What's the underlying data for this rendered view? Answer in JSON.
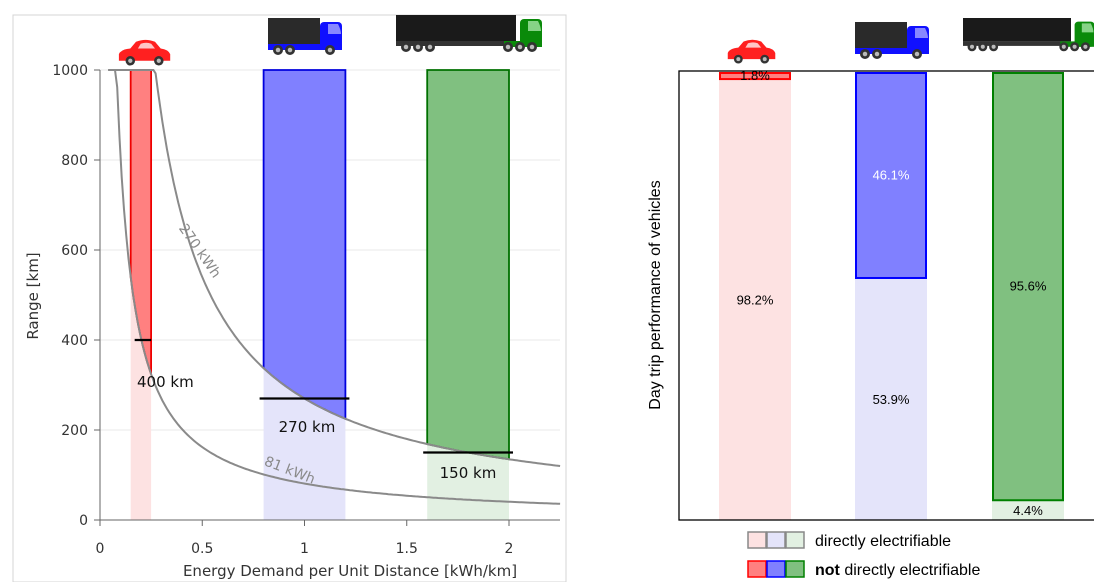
{
  "chart_data": [
    {
      "type": "area",
      "xlabel": "Energy Demand per Unit Distance [kWh/km]",
      "ylabel": "Range [km]",
      "xlim": [
        0,
        2.25
      ],
      "ylim": [
        0,
        1000
      ],
      "xticks": [
        "0",
        "0.5",
        "1",
        "1.5",
        "2"
      ],
      "xtick_values": [
        0,
        0.5,
        1,
        1.5,
        2
      ],
      "yticks": [
        "0",
        "200",
        "400",
        "600",
        "800",
        "1000"
      ],
      "ytick_values": [
        0,
        200,
        400,
        600,
        800,
        1000
      ],
      "grid": true,
      "curves": [
        {
          "label": "81 kWh",
          "capacity_kwh": 81
        },
        {
          "label": "270 kWh",
          "capacity_kwh": 270
        }
      ],
      "bands": [
        {
          "vehicle": "car",
          "x_range": [
            0.15,
            0.25
          ],
          "capacity_kwh": 81,
          "color": "#ff0000"
        },
        {
          "vehicle": "truck",
          "x_range": [
            0.8,
            1.2
          ],
          "capacity_kwh": 270,
          "color": "#0000ff"
        },
        {
          "vehicle": "semi-truck",
          "x_range": [
            1.6,
            2.0
          ],
          "capacity_kwh": 270,
          "color": "#008000"
        }
      ],
      "thresholds": [
        {
          "vehicle": "car",
          "range_km": 400,
          "label": "400 km"
        },
        {
          "vehicle": "truck",
          "range_km": 270,
          "label": "270 km"
        },
        {
          "vehicle": "semi-truck",
          "range_km": 150,
          "label": "150 km"
        }
      ]
    },
    {
      "type": "bar",
      "stacked": true,
      "ylabel": "Day trip performance of vehicles",
      "categories": [
        "car",
        "truck",
        "semi-truck"
      ],
      "series": [
        {
          "name": "directly electrifiable",
          "values": [
            98.2,
            53.9,
            4.4
          ],
          "labels": [
            "98.2%",
            "53.9%",
            "4.4%"
          ]
        },
        {
          "name": "not directly electrifiable",
          "values": [
            1.8,
            46.1,
            95.6
          ],
          "labels": [
            "1.8%",
            "46.1%",
            "95.6%"
          ]
        }
      ],
      "colors": {
        "car": "#ff0000",
        "truck": "#0000ff",
        "semi-truck": "#008000"
      },
      "legend": {
        "placement": "bottom",
        "item1": "directly electrifiable",
        "item2_bold": "not",
        "item2_rest": " directly electrifiable"
      }
    }
  ]
}
